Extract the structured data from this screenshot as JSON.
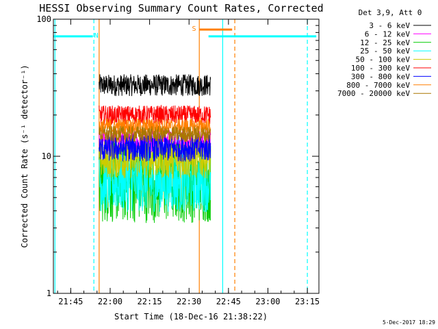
{
  "chart_data": {
    "type": "line",
    "title": "HESSI Observing Summary Count Rates, Corrected",
    "xlabel": "Start Time (18-Dec-16 21:38:22)",
    "ylabel": "Corrected Count Rate (s⁻¹ detector⁻¹)",
    "x_tick_labels": [
      "21:45",
      "22:00",
      "22:15",
      "22:30",
      "22:45",
      "23:00",
      "23:15"
    ],
    "x_ticks_minutes": [
      6.6,
      21.6,
      36.6,
      51.6,
      66.6,
      81.6,
      96.6
    ],
    "x_range_minutes": [
      0,
      101
    ],
    "y_scale": "log",
    "ylim": [
      1,
      100
    ],
    "y_tick_labels": [
      "1",
      "10",
      "100"
    ],
    "legend_header": "Det 3,9, Att 0",
    "legend_position": "top-right",
    "series": [
      {
        "name": "3 - 6 keV",
        "color": "#000000",
        "level": 33,
        "noise": 0.08
      },
      {
        "name": "6 - 12 keV",
        "color": "#ff00ff",
        "level": 12.5,
        "noise": 0.1
      },
      {
        "name": "12 - 25 keV",
        "color": "#00cc00",
        "level": 6.5,
        "noise": 0.3
      },
      {
        "name": "25 - 50 keV",
        "color": "#00ffff",
        "level": 6.5,
        "noise": 0.22
      },
      {
        "name": "50 - 100 keV",
        "color": "#cccc00",
        "level": 9.5,
        "noise": 0.14
      },
      {
        "name": "100 - 300 keV",
        "color": "#ff0000",
        "level": 20,
        "noise": 0.07
      },
      {
        "name": "300 - 800 keV",
        "color": "#0000ff",
        "level": 11.5,
        "noise": 0.1
      },
      {
        "name": "800 - 7000 keV",
        "color": "#ff7f00",
        "level": 16.5,
        "noise": 0.06
      },
      {
        "name": "7000 - 20000 keV",
        "color": "#aa7700",
        "level": 14.5,
        "noise": 0.06
      }
    ],
    "data_window_minutes": [
      17.4,
      59.8
    ],
    "flag_bars": [
      {
        "label": "N",
        "color": "#00ffff",
        "segments": [
          [
            0,
            15
          ],
          [
            59,
            100
          ]
        ],
        "y": 75,
        "label_at": 16.3
      },
      {
        "label": "S",
        "color": "#ff7f00",
        "segments": [
          [
            55.5,
            68
          ]
        ],
        "y": 84,
        "label_at": 53.5
      }
    ],
    "vertical_markers": [
      {
        "minute": 0.6,
        "color": "#00ffff",
        "style": "solid"
      },
      {
        "minute": 15.4,
        "color": "#00ffff",
        "style": "dashed"
      },
      {
        "minute": 17.4,
        "color": "#ff7f00",
        "style": "solid"
      },
      {
        "minute": 55.5,
        "color": "#ff7f00",
        "style": "solid"
      },
      {
        "minute": 64.4,
        "color": "#00ffff",
        "style": "solid"
      },
      {
        "minute": 69.0,
        "color": "#ff7f00",
        "style": "dashed"
      },
      {
        "minute": 96.6,
        "color": "#00ffff",
        "style": "dashed"
      }
    ],
    "grid": false
  },
  "stamp": "5-Dec-2017 18:29"
}
